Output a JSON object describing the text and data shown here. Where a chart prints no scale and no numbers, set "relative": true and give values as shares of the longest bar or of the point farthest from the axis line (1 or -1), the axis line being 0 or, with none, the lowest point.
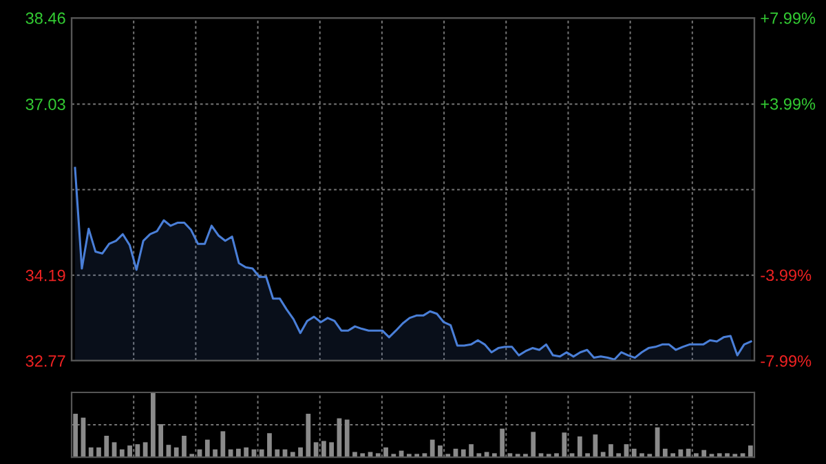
{
  "chart_data": [
    {
      "type": "area",
      "categories": [
        null,
        null,
        null,
        null,
        null,
        null,
        null,
        null,
        null,
        null,
        null,
        null,
        null,
        null,
        null,
        null,
        null,
        null,
        null,
        null,
        null,
        null,
        null,
        null,
        null,
        null,
        null,
        null,
        null,
        null,
        null,
        null,
        null,
        null,
        null,
        null,
        null,
        null,
        null,
        null,
        null,
        null,
        null,
        null,
        null,
        null,
        null,
        null,
        null,
        null,
        null,
        null,
        null,
        null,
        null,
        null,
        null,
        null,
        null,
        null,
        null,
        null,
        null,
        null,
        null,
        null,
        null,
        null,
        null,
        null,
        null,
        null,
        null,
        null,
        null,
        null,
        null,
        null,
        null,
        null,
        null,
        null,
        null,
        null,
        null,
        null,
        null,
        null,
        null,
        null,
        null,
        null,
        null,
        null,
        null,
        null,
        null,
        null,
        null,
        null
      ],
      "series": [
        {
          "color": "#4a7fd8",
          "values": [
            35.97,
            34.3,
            34.96,
            34.58,
            34.55,
            34.71,
            34.76,
            34.87,
            34.69,
            34.28,
            34.76,
            34.87,
            34.92,
            35.1,
            35.01,
            35.06,
            35.06,
            34.94,
            34.71,
            34.71,
            35.01,
            34.85,
            34.76,
            34.83,
            34.39,
            34.32,
            34.3,
            34.16,
            34.16,
            33.8,
            33.8,
            33.62,
            33.46,
            33.23,
            33.43,
            33.5,
            33.41,
            33.48,
            33.43,
            33.27,
            33.27,
            33.34,
            33.3,
            33.27,
            33.27,
            33.27,
            33.16,
            33.27,
            33.39,
            33.48,
            33.52,
            33.52,
            33.59,
            33.55,
            33.41,
            33.36,
            33.02,
            33.02,
            33.04,
            33.11,
            33.04,
            32.91,
            32.98,
            33.0,
            33.0,
            32.86,
            32.93,
            32.98,
            32.95,
            33.04,
            32.86,
            32.84,
            32.91,
            32.84,
            32.91,
            32.95,
            32.82,
            32.84,
            32.82,
            32.79,
            32.91,
            32.86,
            32.82,
            32.91,
            32.98,
            33.0,
            33.04,
            33.04,
            32.95,
            33.0,
            33.04,
            33.04,
            33.04,
            33.11,
            33.09,
            33.16,
            33.18,
            32.86,
            33.04,
            33.09
          ]
        }
      ],
      "ylim": [
        32.77,
        38.46
      ],
      "yticks": [
        32.77,
        34.19,
        {
          "value": 35.61,
          "label": null
        },
        37.03,
        38.46
      ],
      "y2lim": [
        -7.99,
        7.99
      ],
      "y2ticks": [
        {
          "value": -7.99,
          "label": "-7.99%"
        },
        {
          "value": -3.99,
          "label": "-3.99%"
        },
        {
          "value": 0,
          "label": null
        },
        {
          "value": 3.99,
          "label": "+3.99%"
        },
        {
          "value": 7.99,
          "label": "+7.99%"
        }
      ],
      "grid": true
    },
    {
      "type": "bar",
      "relative": true,
      "grid": true,
      "color": "#8a8a8a",
      "categories": [
        null,
        null,
        null,
        null,
        null,
        null,
        null,
        null,
        null,
        null,
        null,
        null,
        null,
        null,
        null,
        null,
        null,
        null,
        null,
        null,
        null,
        null,
        null,
        null,
        null,
        null,
        null,
        null,
        null,
        null,
        null,
        null,
        null,
        null,
        null,
        null,
        null,
        null,
        null,
        null,
        null,
        null,
        null,
        null,
        null,
        null,
        null,
        null,
        null,
        null,
        null,
        null,
        null,
        null,
        null,
        null,
        null,
        null,
        null,
        null,
        null,
        null,
        null,
        null,
        null,
        null,
        null,
        null,
        null,
        null,
        null,
        null,
        null,
        null,
        null,
        null,
        null,
        null,
        null,
        null,
        null,
        null,
        null,
        null,
        null,
        null,
        null,
        null
      ],
      "values": [
        0.67,
        0.61,
        0.15,
        0.15,
        0.33,
        0.23,
        0.12,
        0.18,
        0.2,
        0.23,
        1.0,
        0.51,
        0.19,
        0.15,
        0.33,
        0.05,
        0.12,
        0.27,
        0.12,
        0.4,
        0.12,
        0.13,
        0.15,
        0.12,
        0.12,
        0.37,
        0.12,
        0.12,
        0.08,
        0.15,
        0.67,
        0.23,
        0.25,
        0.23,
        0.6,
        0.58,
        0.08,
        0.06,
        0.08,
        0.06,
        0.15,
        0.05,
        0.1,
        0.05,
        0.05,
        0.06,
        0.27,
        0.18,
        0.05,
        0.13,
        0.12,
        0.2,
        0.06,
        0.08,
        0.06,
        0.44,
        0.06,
        0.05,
        0.05,
        0.39,
        0.06,
        0.05,
        0.06,
        0.38,
        0.06,
        0.32,
        0.06,
        0.35,
        0.08,
        0.2,
        0.06,
        0.2,
        0.13,
        0.06,
        0.05,
        0.46,
        0.13,
        0.06,
        0.12,
        0.13,
        0.06,
        0.11,
        0.05,
        0.06,
        0.06,
        0.05,
        0.06,
        0.18
      ]
    }
  ]
}
